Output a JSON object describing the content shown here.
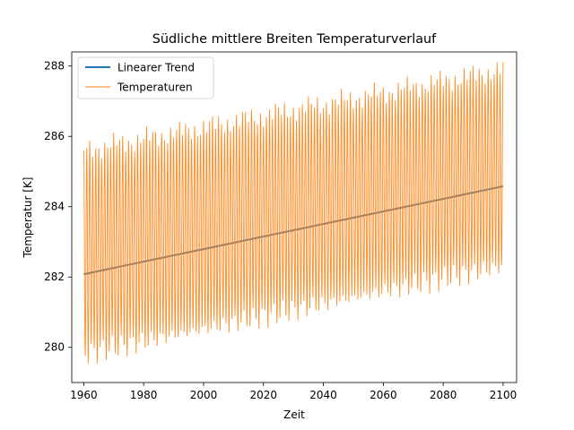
{
  "chart_data": {
    "type": "line",
    "title": "Südliche mittlere Breiten Temperaturverlauf",
    "xlabel": "Zeit",
    "ylabel": "Temperatur [K]",
    "xlim": [
      1956,
      2104.5
    ],
    "ylim": [
      279.0,
      288.4
    ],
    "xticks": [
      1960,
      1980,
      2000,
      2020,
      2040,
      2060,
      2080,
      2100
    ],
    "yticks": [
      280,
      282,
      284,
      286,
      288
    ],
    "grid": false,
    "legend": {
      "position": "top-left",
      "entries": [
        "Linearer Trend",
        "Temperaturen"
      ]
    },
    "series": [
      {
        "name": "Linearer Trend",
        "color": "#1f77b4",
        "kind": "trend",
        "x": [
          1960,
          2100
        ],
        "y": [
          282.08,
          284.58
        ]
      },
      {
        "name": "Temperaturen",
        "color": "#ff7f0e",
        "kind": "seasonal",
        "x_start": 1960,
        "x_end": 2100,
        "annual_max_1960": 285.6,
        "annual_max_2100": 287.9,
        "annual_min_1960": 279.8,
        "annual_min_2100": 282.3
      }
    ]
  }
}
